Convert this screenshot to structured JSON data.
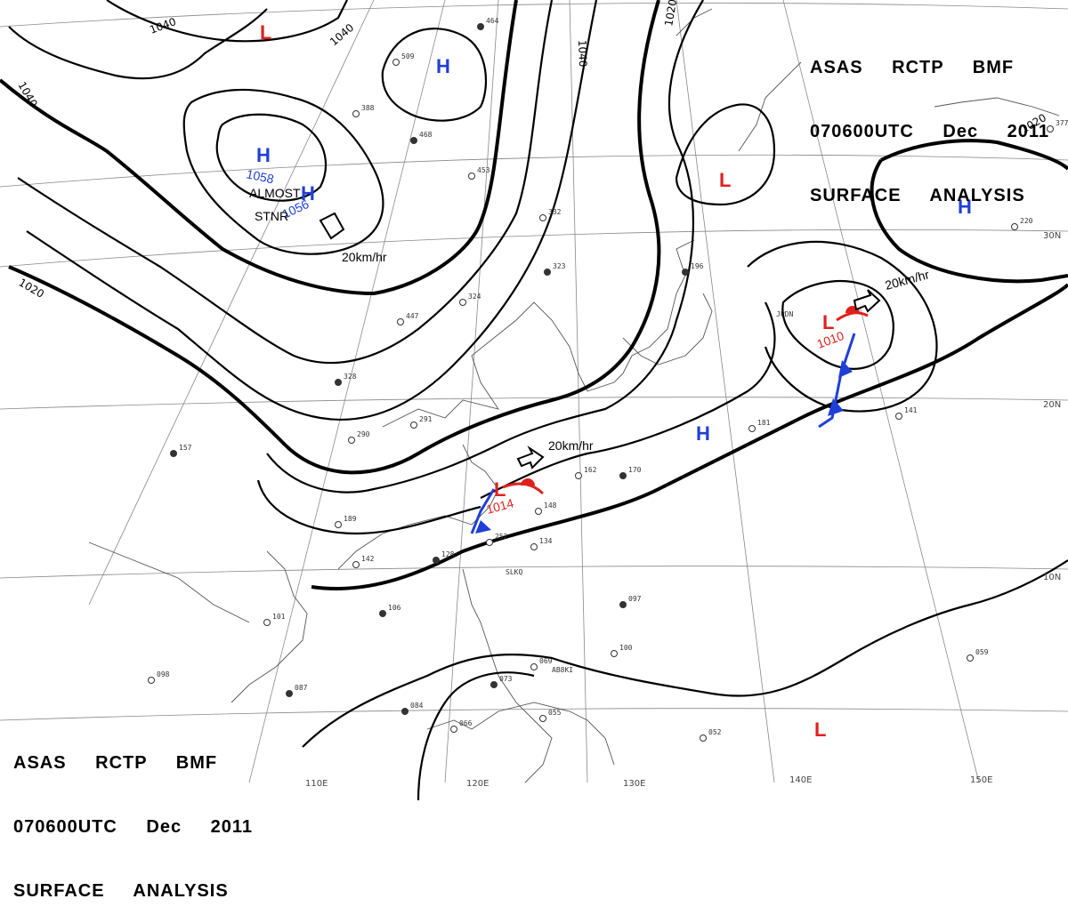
{
  "header": {
    "line1": "ASAS RCTP BMF",
    "line2": "070600UTC Dec 2011",
    "line3": "SURFACE ANALYSIS"
  },
  "isobars": {
    "labels": [
      "1040",
      "1040",
      "1040",
      "1040",
      "1020",
      "1020",
      "1020"
    ]
  },
  "pressure_centers": [
    {
      "type": "H",
      "color": "#1f3fd6"
    },
    {
      "type": "H",
      "color": "#1f3fd6",
      "value": "1058"
    },
    {
      "type": "H",
      "color": "#1f3fd6",
      "value": "1056"
    },
    {
      "type": "H",
      "color": "#1f3fd6"
    },
    {
      "type": "H",
      "color": "#1f3fd6"
    },
    {
      "type": "L",
      "color": "#e0201c"
    },
    {
      "type": "L",
      "color": "#e0201c"
    },
    {
      "type": "L",
      "color": "#e0201c",
      "value": "1010"
    },
    {
      "type": "L",
      "color": "#e0201c",
      "value": "1014"
    },
    {
      "type": "L",
      "color": "#e0201c"
    }
  ],
  "annotations": {
    "almost": "ALMOST",
    "stnr": "STNR",
    "motion_1": "20km/hr",
    "motion_2": "20km/hr",
    "motion_3": "20km/hr"
  },
  "lon_labels": [
    "110E",
    "120E",
    "130E",
    "140E",
    "150E"
  ],
  "lat_labels": [
    "30N",
    "20N",
    "10N"
  ],
  "station_samples": [
    "464",
    "509",
    "388",
    "468",
    "453",
    "332",
    "323",
    "324",
    "447",
    "328",
    "291",
    "290",
    "157",
    "189",
    "142",
    "128",
    "134",
    "148",
    "170",
    "162",
    "252",
    "196",
    "181",
    "141",
    "097",
    "100",
    "069",
    "084",
    "066",
    "055",
    "073",
    "052",
    "059",
    "106",
    "101",
    "098",
    "087",
    "220",
    "377"
  ],
  "station_codes": [
    "JPDN",
    "SLKQ",
    "AB8KI"
  ],
  "colors": {
    "high": "#1f3fd6",
    "low": "#e0201c",
    "isobar": "#000000",
    "background": "#ffffff"
  }
}
